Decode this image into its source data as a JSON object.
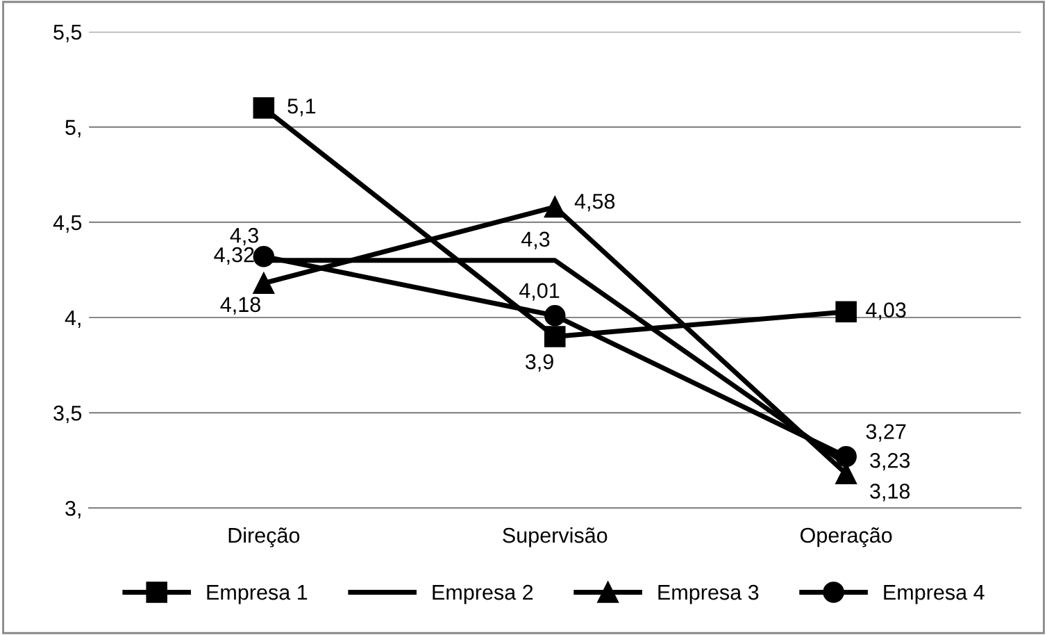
{
  "chart_data": {
    "type": "line",
    "categories": [
      "Direção",
      "Supervisão",
      "Operação"
    ],
    "series": [
      {
        "name": "Empresa 1",
        "color": "#000000",
        "marker": "square",
        "values": [
          5.1,
          3.9,
          4.03
        ],
        "value_labels": [
          "5,1",
          "3,9",
          "4,03"
        ]
      },
      {
        "name": "Empresa 2",
        "color": "#000000",
        "marker": "none",
        "values": [
          4.3,
          4.3,
          3.23
        ],
        "value_labels": [
          "4,3",
          "4,3",
          "3,23"
        ]
      },
      {
        "name": "Empresa 3",
        "color": "#000000",
        "marker": "triangle",
        "values": [
          4.18,
          4.58,
          3.18
        ],
        "value_labels": [
          "4,18",
          "4,58",
          "3,18"
        ]
      },
      {
        "name": "Empresa 4",
        "color": "#000000",
        "marker": "circle",
        "values": [
          4.32,
          4.01,
          3.27
        ],
        "value_labels": [
          "4,32",
          "4,01",
          "3,27"
        ]
      }
    ],
    "ylim": [
      3,
      5.5
    ],
    "yticks": [
      {
        "value": 3,
        "label": "3,"
      },
      {
        "value": 3.5,
        "label": "3,5"
      },
      {
        "value": 4,
        "label": "4,"
      },
      {
        "value": 4.5,
        "label": "4,5"
      },
      {
        "value": 5,
        "label": "5,"
      },
      {
        "value": 5.5,
        "label": "5,5"
      }
    ],
    "grid": "y",
    "legend": "bottom",
    "line_style": "solid"
  }
}
